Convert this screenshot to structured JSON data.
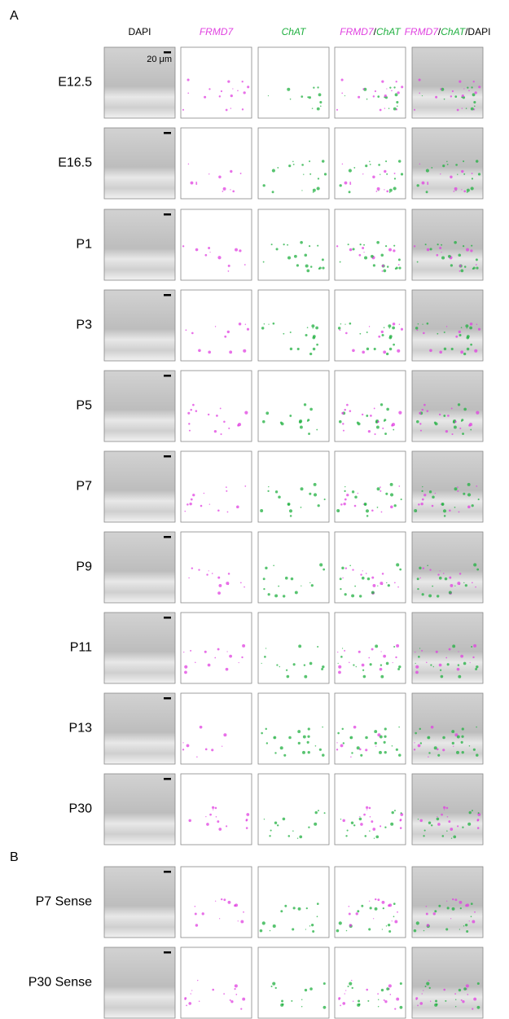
{
  "headers": [
    [
      {
        "text": "DAPI",
        "color": "#000000",
        "italic": false
      }
    ],
    [
      {
        "text": "FRMD7",
        "color": "#e040e0",
        "italic": true
      }
    ],
    [
      {
        "text": "ChAT",
        "color": "#20b040",
        "italic": true
      }
    ],
    [
      {
        "text": "FRMD7",
        "color": "#e040e0",
        "italic": true
      },
      {
        "text": "/",
        "color": "#000000",
        "italic": false
      },
      {
        "text": "ChAT",
        "color": "#20b040",
        "italic": true
      }
    ],
    [
      {
        "text": "FRMD7",
        "color": "#e040e0",
        "italic": true
      },
      {
        "text": "/",
        "color": "#000000",
        "italic": false
      },
      {
        "text": "ChAT",
        "color": "#20b040",
        "italic": true
      },
      {
        "text": "/DAPI",
        "color": "#000000",
        "italic": false
      }
    ]
  ],
  "scale_bar": "20 μm",
  "panels": [
    {
      "label": "A",
      "rows": [
        "E12.5",
        "E16.5",
        "P1",
        "P3",
        "P5",
        "P7",
        "P9",
        "P11",
        "P13",
        "P30"
      ]
    },
    {
      "label": "B",
      "rows": [
        "P7 Sense",
        "P30 Sense"
      ]
    }
  ]
}
